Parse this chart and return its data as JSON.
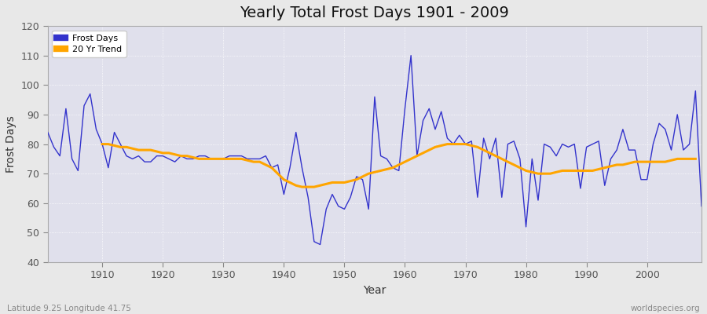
{
  "title": "Yearly Total Frost Days 1901 - 2009",
  "xlabel": "Year",
  "ylabel": "Frost Days",
  "subtitle": "Latitude 9.25 Longitude 41.75",
  "watermark": "worldspecies.org",
  "line_color": "#3333cc",
  "trend_color": "#FFA500",
  "fig_bg_color": "#e8e8e8",
  "plot_bg_color": "#e0e0ec",
  "ylim": [
    40,
    120
  ],
  "xlim": [
    1901,
    2009
  ],
  "yticks": [
    40,
    50,
    60,
    70,
    80,
    90,
    100,
    110,
    120
  ],
  "xticks": [
    1910,
    1920,
    1930,
    1940,
    1950,
    1960,
    1970,
    1980,
    1990,
    2000
  ],
  "years": [
    1901,
    1902,
    1903,
    1904,
    1905,
    1906,
    1907,
    1908,
    1909,
    1910,
    1911,
    1912,
    1913,
    1914,
    1915,
    1916,
    1917,
    1918,
    1919,
    1920,
    1921,
    1922,
    1923,
    1924,
    1925,
    1926,
    1927,
    1928,
    1929,
    1930,
    1931,
    1932,
    1933,
    1934,
    1935,
    1936,
    1937,
    1938,
    1939,
    1940,
    1941,
    1942,
    1943,
    1944,
    1945,
    1946,
    1947,
    1948,
    1949,
    1950,
    1951,
    1952,
    1953,
    1954,
    1955,
    1956,
    1957,
    1958,
    1959,
    1960,
    1961,
    1962,
    1963,
    1964,
    1965,
    1966,
    1967,
    1968,
    1969,
    1970,
    1971,
    1972,
    1973,
    1974,
    1975,
    1976,
    1977,
    1978,
    1979,
    1980,
    1981,
    1982,
    1983,
    1984,
    1985,
    1986,
    1987,
    1988,
    1989,
    1990,
    1991,
    1992,
    1993,
    1994,
    1995,
    1996,
    1997,
    1998,
    1999,
    2000,
    2001,
    2002,
    2003,
    2004,
    2005,
    2006,
    2007,
    2008,
    2009
  ],
  "frost_days": [
    84,
    79,
    76,
    92,
    75,
    71,
    93,
    97,
    85,
    80,
    72,
    84,
    80,
    76,
    75,
    76,
    74,
    74,
    76,
    76,
    75,
    74,
    76,
    75,
    75,
    76,
    76,
    75,
    75,
    75,
    76,
    76,
    76,
    75,
    75,
    75,
    76,
    72,
    73,
    63,
    72,
    84,
    72,
    62,
    47,
    46,
    58,
    63,
    59,
    58,
    62,
    69,
    68,
    58,
    96,
    76,
    75,
    72,
    71,
    92,
    110,
    76,
    88,
    92,
    85,
    91,
    82,
    80,
    83,
    80,
    81,
    62,
    82,
    75,
    82,
    62,
    80,
    81,
    75,
    52,
    75,
    61,
    80,
    79,
    76,
    80,
    79,
    80,
    65,
    79,
    80,
    81,
    66,
    75,
    78,
    85,
    78,
    78,
    68,
    68,
    80,
    87,
    85,
    78,
    90,
    78,
    80,
    98,
    59
  ],
  "trend_years": [
    1910,
    1911,
    1912,
    1913,
    1914,
    1915,
    1916,
    1917,
    1918,
    1919,
    1920,
    1921,
    1922,
    1923,
    1924,
    1925,
    1926,
    1927,
    1928,
    1929,
    1930,
    1931,
    1932,
    1933,
    1934,
    1935,
    1936,
    1937,
    1938,
    1939,
    1940,
    1941,
    1942,
    1943,
    1944,
    1945,
    1946,
    1947,
    1948,
    1949,
    1950,
    1951,
    1952,
    1953,
    1954,
    1955,
    1956,
    1957,
    1958,
    1959,
    1960,
    1961,
    1962,
    1963,
    1964,
    1965,
    1966,
    1967,
    1968,
    1969,
    1970,
    1971,
    1972,
    1973,
    1974,
    1975,
    1976,
    1977,
    1978,
    1979,
    1980,
    1981,
    1982,
    1983,
    1984,
    1985,
    1986,
    1987,
    1988,
    1989,
    1990,
    1991,
    1992,
    1993,
    1994,
    1995,
    1996,
    1997,
    1998,
    1999,
    2000,
    2001,
    2002,
    2003,
    2004,
    2005,
    2006,
    2007,
    2008
  ],
  "trend_values": [
    80,
    80,
    79.5,
    79,
    79,
    78.5,
    78,
    78,
    78,
    77.5,
    77,
    77,
    76.5,
    76,
    76,
    75.5,
    75,
    75,
    75,
    75,
    75,
    75,
    75,
    75,
    74.5,
    74,
    74,
    73,
    72,
    70,
    68,
    67,
    66,
    65.5,
    65.5,
    65.5,
    66,
    66.5,
    67,
    67,
    67,
    67.5,
    68,
    69,
    70,
    70.5,
    71,
    71.5,
    72,
    73,
    74,
    75,
    76,
    77,
    78,
    79,
    79.5,
    80,
    80,
    80,
    80,
    79.5,
    79,
    78,
    77,
    76,
    75,
    74,
    73,
    72,
    71,
    70.5,
    70,
    70,
    70,
    70.5,
    71,
    71,
    71,
    71,
    71,
    71,
    71.5,
    72,
    72.5,
    73,
    73,
    73.5,
    74,
    74,
    74,
    74,
    74,
    74,
    74.5,
    75,
    75,
    75,
    75
  ]
}
